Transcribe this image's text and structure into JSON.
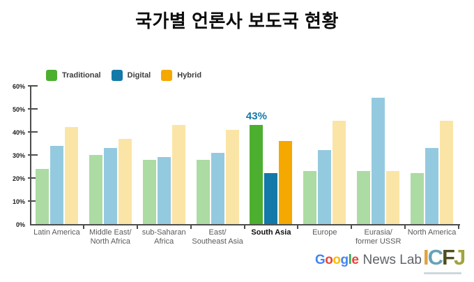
{
  "title": "국가별 언론사 보도국 현황",
  "legend": {
    "items": [
      {
        "label": "Traditional",
        "color": "#4caf2f"
      },
      {
        "label": "Digital",
        "color": "#1379a8"
      },
      {
        "label": "Hybrid",
        "color": "#f5a800"
      }
    ]
  },
  "chart_data": {
    "type": "bar",
    "title": "국가별 언론사 보도국 현황",
    "categories": [
      "Latin America",
      "Middle East/North Africa",
      "sub-Saharan Africa",
      "East/Southeast Asia",
      "South Asia",
      "Europe",
      "Eurasia/former USSR",
      "North America"
    ],
    "category_label_lines": [
      [
        "Latin America"
      ],
      [
        "Middle East/",
        "North Africa"
      ],
      [
        "sub-Saharan",
        "Africa"
      ],
      [
        "East/",
        "Southeast Asia"
      ],
      [
        "South Asia"
      ],
      [
        "Europe"
      ],
      [
        "Eurasia/",
        "former USSR"
      ],
      [
        "North America"
      ]
    ],
    "series": [
      {
        "name": "Traditional",
        "values": [
          24,
          30,
          28,
          28,
          43,
          23,
          23,
          22
        ],
        "color_muted": "#acdba3",
        "color_highlight": "#4caf2f"
      },
      {
        "name": "Digital",
        "values": [
          34,
          33,
          29,
          31,
          22,
          32,
          55,
          33
        ],
        "color_muted": "#94cadf",
        "color_highlight": "#1379a8"
      },
      {
        "name": "Hybrid",
        "values": [
          42,
          37,
          43,
          41,
          36,
          45,
          23,
          45
        ],
        "color_muted": "#fbe5a6",
        "color_highlight": "#f5a800"
      }
    ],
    "highlight_category_index": 4,
    "highlighted_category": "South Asia",
    "annotation": {
      "text": "43%",
      "category": "South Asia",
      "series": "Traditional",
      "color": "#1379a8"
    },
    "ylim": [
      0,
      60
    ],
    "ytick_labels": [
      "0%",
      "10%",
      "20%",
      "30%",
      "40%",
      "50%",
      "60%"
    ],
    "grid": false,
    "legend_position": "top-left"
  },
  "footer": {
    "google_news_lab": {
      "letters": [
        {
          "char": "G",
          "color": "#4285f4"
        },
        {
          "char": "o",
          "color": "#ea4335"
        },
        {
          "char": "o",
          "color": "#fbbc05"
        },
        {
          "char": "g",
          "color": "#4285f4"
        },
        {
          "char": "l",
          "color": "#34a853"
        },
        {
          "char": "e",
          "color": "#ea4335"
        }
      ],
      "suffix": "News Lab",
      "suffix_color": "#5f6368"
    },
    "icfj": {
      "letters": [
        {
          "char": "I",
          "color": "#e0a33c"
        },
        {
          "char": "C",
          "color": "#67a3b9"
        },
        {
          "char": "F",
          "color": "#4e4e22"
        },
        {
          "char": "J",
          "color": "#a2a43e"
        }
      ]
    }
  }
}
